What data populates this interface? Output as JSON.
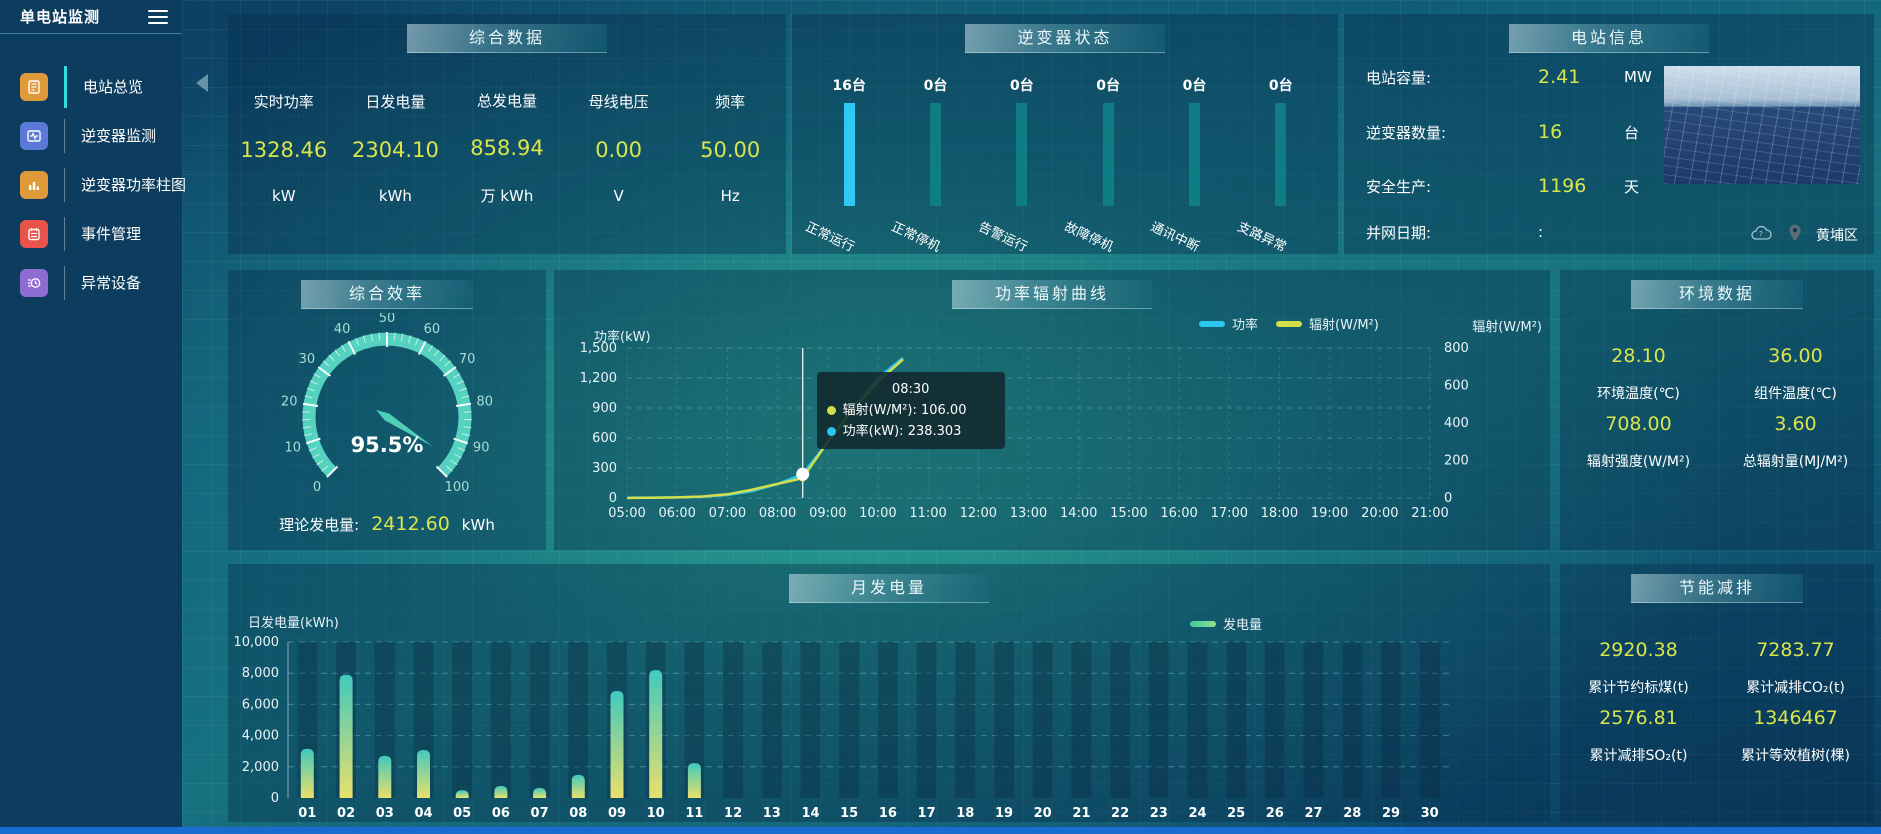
{
  "colors": {
    "accent_yellow": "#d9e54b",
    "power_line": "#2bc6f0",
    "radiation_line": "#d4de4b",
    "bar_active": "#2ec9f4",
    "bar_inactive": "#0f7d84",
    "gauge_arc": "#56d2c0",
    "bar_grad_top": "#41c9be",
    "bar_grad_bottom": "#e9e06b",
    "scroll_blue": "#1a6dd0"
  },
  "sidebar": {
    "title": "单电站监测",
    "items": [
      {
        "label": "电站总览",
        "active": true
      },
      {
        "label": "逆变器监测",
        "active": false
      },
      {
        "label": "逆变器功率柱图",
        "active": false
      },
      {
        "label": "事件管理",
        "active": false
      },
      {
        "label": "异常设备",
        "active": false
      }
    ]
  },
  "panels": {
    "summary": {
      "title": "综合数据",
      "metrics": [
        {
          "label": "实时功率",
          "value": "1328.46",
          "unit": "kW"
        },
        {
          "label": "日发电量",
          "value": "2304.10",
          "unit": "kWh"
        },
        {
          "label": "总发电量",
          "value": "858.94",
          "unit": "万 kWh"
        },
        {
          "label": "母线电压",
          "value": "0.00",
          "unit": "V"
        },
        {
          "label": "频率",
          "value": "50.00",
          "unit": "Hz"
        }
      ]
    },
    "inverter_status": {
      "title": "逆变器状态",
      "bars": [
        {
          "count": "16台",
          "label": "正常运行",
          "active": true
        },
        {
          "count": "0台",
          "label": "正常停机",
          "active": false
        },
        {
          "count": "0台",
          "label": "告警运行",
          "active": false
        },
        {
          "count": "0台",
          "label": "故障停机",
          "active": false
        },
        {
          "count": "0台",
          "label": "通讯中断",
          "active": false
        },
        {
          "count": "0台",
          "label": "支路异常",
          "active": false
        }
      ]
    },
    "station_info": {
      "title": "电站信息",
      "rows": [
        {
          "label": "电站容量:",
          "value": "2.41",
          "unit": "MW"
        },
        {
          "label": "逆变器数量:",
          "value": "16",
          "unit": "台"
        },
        {
          "label": "安全生产:",
          "value": "1196",
          "unit": "天"
        },
        {
          "label": "并网日期:",
          "value": ":",
          "unit": ""
        }
      ],
      "location": "黄埔区"
    },
    "efficiency": {
      "title": "综合效率",
      "theory_label": "理论发电量:",
      "theory_value": "2412.60",
      "theory_unit": "kWh"
    },
    "power_curve": {
      "title": "功率辐射曲线"
    },
    "environment": {
      "title": "环境数据",
      "metrics": [
        {
          "value": "28.10",
          "label": "环境温度(℃)"
        },
        {
          "value": "36.00",
          "label": "组件温度(℃)"
        },
        {
          "value": "708.00",
          "label": "辐射强度(W/M²)"
        },
        {
          "value": "3.60",
          "label": "总辐射量(MJ/M²)"
        }
      ]
    },
    "monthly": {
      "title": "月发电量"
    },
    "energy_saving": {
      "title": "节能减排",
      "metrics": [
        {
          "value": "2920.38",
          "label": "累计节约标煤(t)"
        },
        {
          "value": "7283.77",
          "label": "累计减排CO₂(t)"
        },
        {
          "value": "2576.81",
          "label": "累计减排SO₂(t)"
        },
        {
          "value": "1346467",
          "label": "累计等效植树(棵)"
        }
      ]
    }
  },
  "chart_data": [
    {
      "type": "line",
      "title": "功率辐射曲线",
      "x_categories": [
        "05:00",
        "06:00",
        "07:00",
        "08:00",
        "09:00",
        "10:00",
        "11:00",
        "12:00",
        "13:00",
        "14:00",
        "15:00",
        "16:00",
        "17:00",
        "18:00",
        "19:00",
        "20:00",
        "21:00"
      ],
      "left_axis": {
        "name": "功率(kW)",
        "min": 0,
        "max": 1500,
        "step": 300
      },
      "right_axis": {
        "name": "辐射(W/M²)",
        "min": 0,
        "max": 800,
        "step": 200
      },
      "series": [
        {
          "name": "功率",
          "color": "#2bc6f0",
          "axis": "left",
          "x": [
            "05:00",
            "05:30",
            "06:00",
            "06:30",
            "07:00",
            "07:30",
            "08:00",
            "08:30",
            "09:00",
            "09:30",
            "10:00",
            "10:30"
          ],
          "values": [
            3,
            4,
            6,
            12,
            30,
            70,
            140,
            238.303,
            560,
            900,
            1200,
            1400
          ]
        },
        {
          "name": "辐射(W/M²)",
          "color": "#d4de4b",
          "axis": "right",
          "x": [
            "05:00",
            "05:30",
            "06:00",
            "06:30",
            "07:00",
            "07:30",
            "08:00",
            "08:30",
            "09:00",
            "09:30",
            "10:00",
            "10:30"
          ],
          "values": [
            0,
            1,
            3,
            8,
            20,
            45,
            75,
            106,
            300,
            470,
            620,
            740
          ]
        }
      ],
      "tooltip": {
        "x_time": "08:30",
        "time": "08:30",
        "rows": [
          {
            "color": "#d4de4b",
            "label": "辐射(W/M²): 106.00"
          },
          {
            "color": "#2bc6f0",
            "label": "功率(kW): 238.303"
          }
        ]
      },
      "legend_position": "top-right",
      "grid": "dashed"
    },
    {
      "type": "bar",
      "title": "月发电量",
      "ylabel": "日发电量(kWh)",
      "ylim": [
        0,
        10000
      ],
      "step": 2000,
      "legend": "发电量",
      "categories": [
        "01",
        "02",
        "03",
        "04",
        "05",
        "06",
        "07",
        "08",
        "09",
        "10",
        "11",
        "12",
        "13",
        "14",
        "15",
        "16",
        "17",
        "18",
        "19",
        "20",
        "21",
        "22",
        "23",
        "24",
        "25",
        "26",
        "27",
        "28",
        "29",
        "30"
      ],
      "values": [
        3150,
        7900,
        2700,
        3080,
        500,
        770,
        640,
        1480,
        6860,
        8200,
        2240,
        0,
        0,
        0,
        0,
        0,
        0,
        0,
        0,
        0,
        0,
        0,
        0,
        0,
        0,
        0,
        0,
        0,
        0,
        0
      ]
    },
    {
      "type": "gauge",
      "title": "综合效率",
      "value": 95.5,
      "display": "95.5%",
      "min": 0,
      "max": 100,
      "tick_step": 10
    },
    {
      "type": "bar",
      "subtype": "inverter-status",
      "title": "逆变器状态",
      "categories": [
        "正常运行",
        "正常停机",
        "告警运行",
        "故障停机",
        "通讯中断",
        "支路异常"
      ],
      "values": [
        16,
        0,
        0,
        0,
        0,
        0
      ],
      "unit": "台"
    }
  ]
}
